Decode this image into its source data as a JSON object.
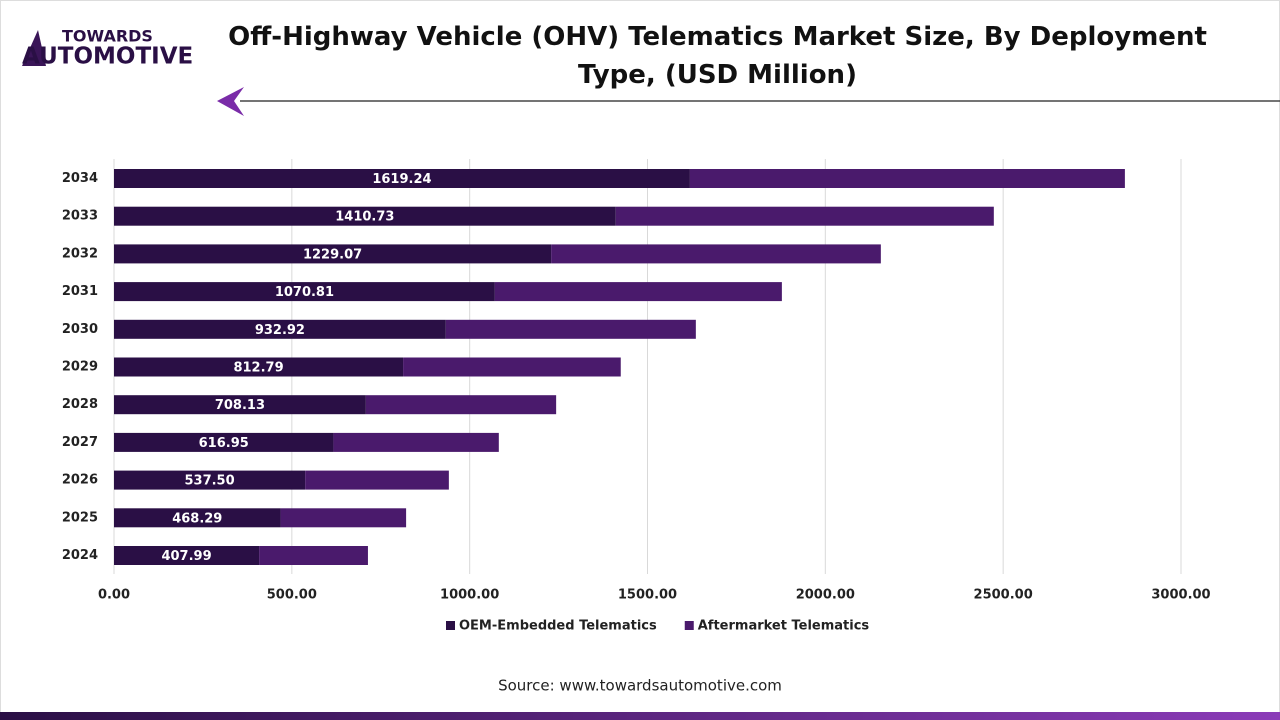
{
  "brand": {
    "line1": "TOWARDS",
    "line2": "AUTOMOTIVE"
  },
  "chart_data": {
    "type": "stacked-bar-horizontal",
    "title": "Off-Highway Vehicle (OHV) Telematics Market Size, By Deployment Type, (USD Million)",
    "categories": [
      "2034",
      "2033",
      "2032",
      "2031",
      "2030",
      "2029",
      "2028",
      "2027",
      "2026",
      "2025",
      "2024"
    ],
    "series": [
      {
        "name": "OEM-Embedded Telematics",
        "color": "#2a0f45",
        "values": [
          1619.24,
          1410.73,
          1229.07,
          1070.81,
          932.92,
          812.79,
          708.13,
          616.95,
          537.5,
          468.29,
          407.99
        ],
        "value_labels": [
          "1619.24",
          "1410.73",
          "1229.07",
          "1070.81",
          "932.92",
          "812.79",
          "708.13",
          "616.95",
          "537.50",
          "468.29",
          "407.99"
        ]
      },
      {
        "name": "Aftermarket Telematics",
        "color": "#4a1a6c",
        "values": [
          1223,
          1063,
          927,
          807,
          703,
          612,
          535,
          465,
          404,
          353,
          306
        ]
      }
    ],
    "xlim": [
      0,
      3000
    ],
    "xticks": [
      {
        "value": 0,
        "label": "0.00"
      },
      {
        "value": 500,
        "label": "500.00"
      },
      {
        "value": 1000,
        "label": "1000.00"
      },
      {
        "value": 1500,
        "label": "1500.00"
      },
      {
        "value": 2000,
        "label": "2000.00"
      },
      {
        "value": 2500,
        "label": "2500.00"
      },
      {
        "value": 3000,
        "label": "3000.00"
      }
    ],
    "grid": true,
    "source": "Source: www.towardsautomotive.com"
  }
}
